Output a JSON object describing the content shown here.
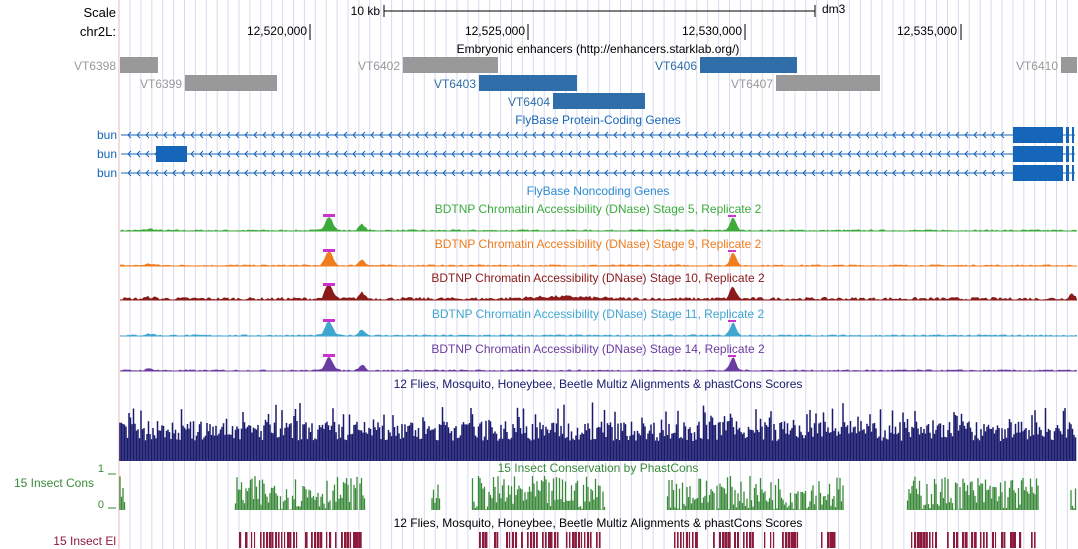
{
  "browser": {
    "scale_label": "Scale",
    "scale_bar_label": "10 kb",
    "assembly": "dm3",
    "chrom_label": "chr2L:",
    "positions": [
      "12,520,000",
      "12,525,000",
      "12,530,000",
      "12,535,000"
    ]
  },
  "tracks": {
    "enhancers": {
      "title": "Embryonic enhancers (http://enhancers.starklab.org/)",
      "items": [
        "VT6398",
        "VT6399",
        "VT6402",
        "VT6403",
        "VT6404",
        "VT6406",
        "VT6407",
        "VT6410"
      ]
    },
    "genes": {
      "title": "FlyBase Protein-Coding Genes",
      "names": [
        "bun",
        "bun",
        "bun"
      ]
    },
    "noncoding": {
      "title": "FlyBase Noncoding Genes"
    },
    "dnase": [
      {
        "title": "BDTNP Chromatin Accessibility (DNase) Stage 5, Replicate 2",
        "color": "#3cab3c"
      },
      {
        "title": "BDTNP Chromatin Accessibility (DNase) Stage 9, Replicate 2",
        "color": "#f07c1e"
      },
      {
        "title": "BDTNP Chromatin Accessibility (DNase) Stage 10, Replicate 2",
        "color": "#8b1a1a"
      },
      {
        "title": "BDTNP Chromatin Accessibility (DNase) Stage 11, Replicate 2",
        "color": "#3fa6d0"
      },
      {
        "title": "BDTNP Chromatin Accessibility (DNase) Stage 14, Replicate 2",
        "color": "#6a3ca0"
      }
    ],
    "multiz": {
      "title": "12 Flies, Mosquito, Honeybee, Beetle Multiz Alignments & phastCons Scores"
    },
    "cons": {
      "title": "15 Insect Conservation by PhastCons",
      "side_label": "15 Insect Cons",
      "axis_top": "1",
      "axis_bottom": "0"
    },
    "elements": {
      "title": "12 Flies, Mosquito, Honeybee, Beetle Multiz Alignments & phastCons Scores",
      "side_label": "15 Insect El"
    }
  },
  "colors": {
    "gray_enhancer": "#999999",
    "blue_enhancer": "#2f6ea8",
    "gene": "#1565b8",
    "multiz": "#1a1a6e",
    "cons": "#3a8a3a",
    "elements": "#8b1a3c",
    "peak_cap": "#cc33cc"
  }
}
